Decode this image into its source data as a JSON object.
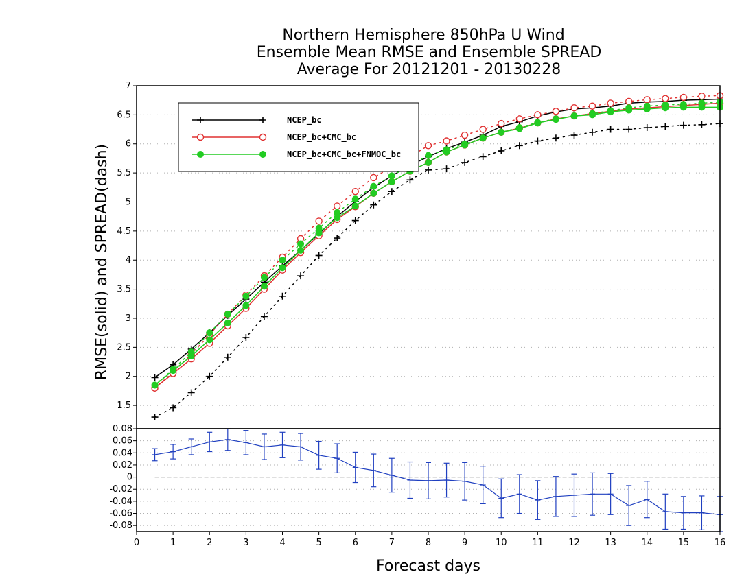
{
  "chart_data": {
    "type": "line",
    "title_lines": [
      "Northern Hemisphere 850hPa U Wind",
      "Ensemble Mean RMSE and Ensemble SPREAD",
      "Average For 20121201 - 20130228"
    ],
    "xlabel": "Forecast days",
    "ylabel": "RMSE(solid) and SPREAD(dash)",
    "xlim": [
      0,
      16
    ],
    "x_ticks": [
      "0",
      "1",
      "2",
      "3",
      "4",
      "5",
      "6",
      "7",
      "8",
      "9",
      "10",
      "11",
      "12",
      "13",
      "14",
      "15",
      "16"
    ],
    "upper_panel": {
      "ylim": [
        1.1,
        7
      ],
      "y_ticks": [
        "1.5",
        "2",
        "2.5",
        "3",
        "3.5",
        "4",
        "4.5",
        "5",
        "5.5",
        "6",
        "6.5",
        "7"
      ],
      "grid": "dotted",
      "legend": {
        "placement": "top-left",
        "entries": [
          "NCEP_bc",
          "NCEP_bc+CMC_bc",
          "NCEP_bc+CMC_bc+FNMOC_bc"
        ]
      },
      "x": [
        0.5,
        1,
        1.5,
        2,
        2.5,
        3,
        3.5,
        4,
        4.5,
        5,
        5.5,
        6,
        6.5,
        7,
        7.5,
        8,
        8.5,
        9,
        9.5,
        10,
        10.5,
        11,
        11.5,
        12,
        12.5,
        13,
        13.5,
        14,
        14.5,
        15,
        15.5,
        16
      ],
      "series": [
        {
          "name": "NCEP_bc",
          "color": "#000000",
          "marker": "plus",
          "rmse": [
            1.98,
            2.2,
            2.47,
            2.75,
            3.05,
            3.33,
            3.62,
            3.9,
            4.17,
            4.45,
            4.75,
            5.01,
            5.25,
            5.45,
            5.63,
            5.78,
            5.92,
            6.03,
            6.15,
            6.3,
            6.38,
            6.48,
            6.55,
            6.6,
            6.62,
            6.65,
            6.7,
            6.72,
            6.73,
            6.75,
            6.76,
            6.77
          ],
          "spread": [
            1.3,
            1.46,
            1.72,
            2.0,
            2.33,
            2.67,
            3.03,
            3.38,
            3.73,
            4.08,
            4.38,
            4.68,
            4.95,
            5.18,
            5.38,
            5.55,
            5.57,
            5.68,
            5.78,
            5.88,
            5.97,
            6.05,
            6.1,
            6.15,
            6.2,
            6.25,
            6.25,
            6.28,
            6.3,
            6.32,
            6.33,
            6.35
          ]
        },
        {
          "name": "NCEP_bc+CMC_bc",
          "color": "#e03030",
          "marker": "circle",
          "rmse": [
            1.8,
            2.05,
            2.3,
            2.57,
            2.87,
            3.17,
            3.5,
            3.83,
            4.13,
            4.42,
            4.7,
            4.92,
            5.15,
            5.35,
            5.53,
            5.68,
            5.86,
            5.98,
            6.1,
            6.2,
            6.27,
            6.36,
            6.43,
            6.48,
            6.52,
            6.56,
            6.6,
            6.62,
            6.64,
            6.66,
            6.68,
            6.7
          ],
          "spread": [
            1.8,
            2.07,
            2.38,
            2.72,
            3.07,
            3.4,
            3.73,
            4.05,
            4.37,
            4.67,
            4.93,
            5.18,
            5.42,
            5.6,
            5.78,
            5.97,
            6.05,
            6.15,
            6.25,
            6.35,
            6.43,
            6.5,
            6.56,
            6.62,
            6.65,
            6.7,
            6.73,
            6.76,
            6.78,
            6.8,
            6.82,
            6.83
          ]
        },
        {
          "name": "NCEP_bc+CMC_bc+FNMOC_bc",
          "color": "#22cc22",
          "marker": "dot",
          "rmse": [
            1.85,
            2.1,
            2.35,
            2.63,
            2.92,
            3.22,
            3.55,
            3.87,
            4.17,
            4.47,
            4.73,
            4.93,
            5.15,
            5.35,
            5.53,
            5.68,
            5.86,
            5.98,
            6.1,
            6.2,
            6.26,
            6.36,
            6.42,
            6.48,
            6.5,
            6.55,
            6.58,
            6.6,
            6.62,
            6.63,
            6.63,
            6.63
          ],
          "spread": [
            1.85,
            2.12,
            2.42,
            2.75,
            3.07,
            3.38,
            3.7,
            4.0,
            4.28,
            4.55,
            4.82,
            5.05,
            5.27,
            5.45,
            5.63,
            5.8,
            5.9,
            6.0,
            6.1,
            6.2,
            6.28,
            6.37,
            6.43,
            6.48,
            6.52,
            6.57,
            6.62,
            6.65,
            6.67,
            6.68,
            6.7,
            6.72
          ]
        }
      ]
    },
    "lower_panel": {
      "ylim": [
        -0.09,
        0.08
      ],
      "y_ticks": [
        "0.08",
        "0.06",
        "0.04",
        "0.02",
        "0",
        "-0.02",
        "-0.04",
        "-0.06",
        "-0.08"
      ],
      "color": "#2040c0",
      "x": [
        0.5,
        1,
        1.5,
        2,
        2.5,
        3,
        3.5,
        4,
        4.5,
        5,
        5.5,
        6,
        6.5,
        7,
        7.5,
        8,
        8.5,
        9,
        9.5,
        10,
        10.5,
        11,
        11.5,
        12,
        12.5,
        13,
        13.5,
        14,
        14.5,
        15,
        15.5,
        16
      ],
      "values": [
        0.037,
        0.042,
        0.05,
        0.058,
        0.062,
        0.057,
        0.05,
        0.053,
        0.05,
        0.036,
        0.031,
        0.016,
        0.011,
        0.003,
        -0.005,
        -0.006,
        -0.005,
        -0.007,
        -0.013,
        -0.035,
        -0.028,
        -0.038,
        -0.032,
        -0.03,
        -0.028,
        -0.028,
        -0.047,
        -0.037,
        -0.057,
        -0.059,
        -0.059,
        -0.062
      ],
      "err": [
        0.01,
        0.012,
        0.013,
        0.016,
        0.018,
        0.02,
        0.021,
        0.021,
        0.022,
        0.023,
        0.024,
        0.025,
        0.027,
        0.028,
        0.03,
        0.03,
        0.028,
        0.031,
        0.031,
        0.032,
        0.032,
        0.032,
        0.033,
        0.035,
        0.035,
        0.034,
        0.033,
        0.03,
        0.029,
        0.027,
        0.028,
        0.03
      ]
    }
  }
}
